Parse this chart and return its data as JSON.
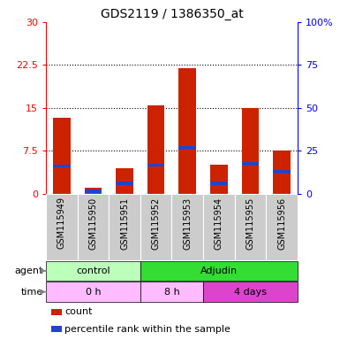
{
  "title": "GDS2119 / 1386350_at",
  "samples": [
    "GSM115949",
    "GSM115950",
    "GSM115951",
    "GSM115952",
    "GSM115953",
    "GSM115954",
    "GSM115955",
    "GSM115956"
  ],
  "red_values": [
    13.2,
    1.0,
    4.5,
    15.5,
    22.0,
    5.0,
    15.0,
    7.5
  ],
  "blue_values": [
    4.8,
    0.4,
    1.8,
    5.0,
    8.0,
    1.8,
    5.2,
    3.8
  ],
  "ylim_left": [
    0,
    30
  ],
  "ylim_right": [
    0,
    100
  ],
  "yticks_left": [
    0,
    7.5,
    15,
    22.5,
    30
  ],
  "yticks_right": [
    0,
    25,
    50,
    75,
    100
  ],
  "ytick_labels_left": [
    "0",
    "7.5",
    "15",
    "22.5",
    "30"
  ],
  "ytick_labels_right": [
    "0",
    "25",
    "50",
    "75",
    "100%"
  ],
  "dotted_lines": [
    7.5,
    15,
    22.5
  ],
  "bar_color": "#cc2200",
  "blue_color": "#2244cc",
  "bar_width": 0.55,
  "agent_labels": [
    {
      "label": "control",
      "start": 0,
      "end": 3,
      "color": "#bbffbb"
    },
    {
      "label": "Adjudin",
      "start": 3,
      "end": 8,
      "color": "#33dd33"
    }
  ],
  "time_labels": [
    {
      "label": "0 h",
      "start": 0,
      "end": 3,
      "color": "#ffbbff"
    },
    {
      "label": "8 h",
      "start": 3,
      "end": 5,
      "color": "#ffbbff"
    },
    {
      "label": "4 days",
      "start": 5,
      "end": 8,
      "color": "#dd44cc"
    }
  ],
  "legend_items": [
    {
      "color": "#cc2200",
      "label": "count"
    },
    {
      "color": "#2244cc",
      "label": "percentile rank within the sample"
    }
  ],
  "bg_color": "#ffffff",
  "cell_bg": "#cccccc"
}
